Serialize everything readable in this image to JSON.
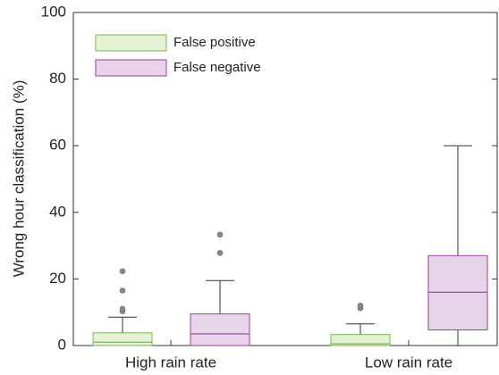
{
  "chart_data": {
    "type": "box",
    "ylabel": "Wrong hour classification (%)",
    "categories": [
      "High rain rate",
      "Low rain rate"
    ],
    "series": [
      {
        "name": "False positive",
        "color": "#78b94a",
        "fill": "#e5f1d6",
        "values": [
          {
            "min": 0,
            "q1": 0,
            "median": 1,
            "q3": 3.8,
            "max": 8.5,
            "outliers": [
              10.3,
              11,
              16.5,
              22.3
            ]
          },
          {
            "min": 0,
            "q1": 0,
            "median": 0.5,
            "q3": 3.3,
            "max": 6.5,
            "outliers": [
              11.2,
              12
            ]
          }
        ]
      },
      {
        "name": "False negative",
        "color": "#9c3f9e",
        "fill": "#e9d5eb",
        "values": [
          {
            "min": 0,
            "q1": 0,
            "median": 3.5,
            "q3": 9.5,
            "max": 19.5,
            "outliers": [
              27.8,
              33.3
            ]
          },
          {
            "min": 0,
            "q1": 4.7,
            "median": 16,
            "q3": 27,
            "max": 60,
            "outliers": []
          }
        ]
      }
    ],
    "ylim": [
      0,
      100
    ],
    "yticks": [
      0,
      20,
      40,
      60,
      80,
      100
    ]
  }
}
